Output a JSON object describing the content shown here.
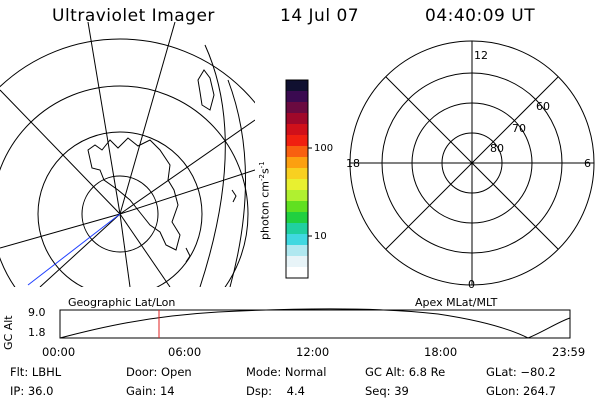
{
  "header": {
    "title": "Ultraviolet Imager",
    "date": "14 Jul 07",
    "time": "04:40:09 UT"
  },
  "colorbar": {
    "label": "photon cm",
    "label_exp1": "-2",
    "label_mid": "s",
    "label_exp2": "-1",
    "ticks": [
      "100",
      "10"
    ],
    "colors": [
      "#101030",
      "#3a0a50",
      "#6a0a40",
      "#a0082a",
      "#d0101a",
      "#f02010",
      "#f86010",
      "#fca010",
      "#f8d020",
      "#e8f030",
      "#b0f030",
      "#60e020",
      "#20d040",
      "#20d0a0",
      "#40d8e0",
      "#b0e8f0",
      "#e8f4f8",
      "#ffffff"
    ]
  },
  "left_panel": {
    "caption": "Geographic Lat/Lon"
  },
  "right_panel": {
    "caption": "Apex MLat/MLT",
    "hour_labels": {
      "top": "12",
      "left": "18",
      "right": "6",
      "bottom": "0"
    },
    "lat_labels": [
      "60",
      "70",
      "80"
    ]
  },
  "altitude_strip": {
    "axis_label": "GC Alt",
    "y_ticks": [
      "9.0",
      "1.8"
    ],
    "x_ticks": [
      "00:00",
      "06:00",
      "12:00",
      "18:00",
      "23:59"
    ]
  },
  "info": {
    "row1": [
      {
        "key": "Flt:",
        "value": "LBHL"
      },
      {
        "key": "Door:",
        "value": "Open"
      },
      {
        "key": "Mode:",
        "value": "Normal"
      },
      {
        "key": "GC Alt:",
        "value": "6.8 Re"
      },
      {
        "key": "GLat:",
        "value": "−80.2"
      }
    ],
    "row2": [
      {
        "key": "IP:",
        "value": "36.0"
      },
      {
        "key": "Gain:",
        "value": "14"
      },
      {
        "key": "Dsp:",
        "value": "4.4"
      },
      {
        "key": "Seq:",
        "value": "39"
      },
      {
        "key": "GLon:",
        "value": "264.7"
      }
    ]
  },
  "colors": {
    "foreground": "#000000",
    "orbit_marker": "#e02020",
    "terminator": "#2040ff"
  }
}
